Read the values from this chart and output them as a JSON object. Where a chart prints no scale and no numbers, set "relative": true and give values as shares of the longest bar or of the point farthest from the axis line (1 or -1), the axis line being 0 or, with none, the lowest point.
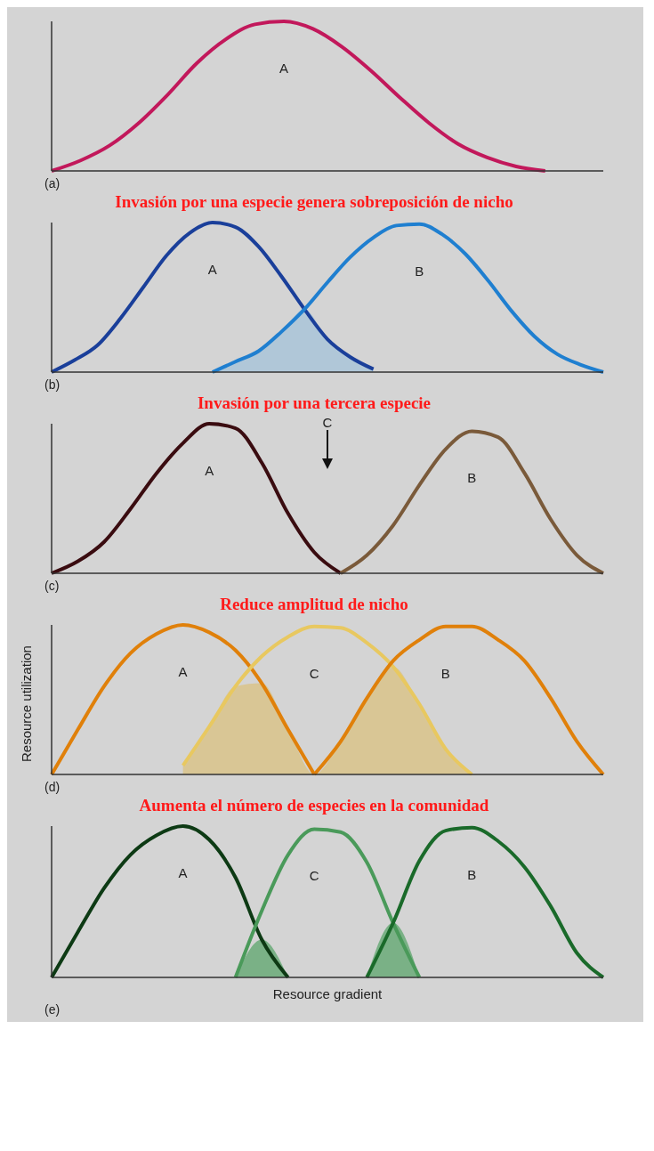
{
  "chart_data": [
    {
      "type": "line",
      "relative": true,
      "annotations": [
        "(a)"
      ],
      "categories": [
        null,
        null,
        null,
        null,
        null,
        null,
        null,
        null,
        null,
        null,
        null,
        null,
        null,
        null,
        null,
        null,
        null,
        null,
        null,
        null
      ],
      "series": [
        {
          "name": "A",
          "color": "#c2185b",
          "values": [
            0,
            0.07,
            0.17,
            0.32,
            0.51,
            0.72,
            0.88,
            0.98,
            1.0,
            0.95,
            0.83,
            0.67,
            0.49,
            0.32,
            0.18,
            0.09,
            0.03,
            0,
            null,
            null
          ]
        }
      ]
    },
    {
      "type": "line",
      "relative": true,
      "title": "Invasión por una especie genera sobreposición de nicho",
      "annotations": [
        "(b)"
      ],
      "categories": [
        null,
        null,
        null,
        null,
        null,
        null,
        null,
        null,
        null,
        null,
        null,
        null,
        null,
        null,
        null,
        null,
        null,
        null,
        null,
        null,
        null,
        null,
        null,
        null,
        null
      ],
      "series": [
        {
          "type": "area",
          "color": "#a9c4d8",
          "values": [
            null,
            null,
            null,
            null,
            null,
            null,
            null,
            0,
            0.07,
            0.14,
            0.27,
            0.42,
            0.22,
            0.1,
            0.02,
            null,
            null,
            null,
            null,
            null,
            null,
            null,
            null,
            null,
            null
          ]
        },
        {
          "name": "A",
          "color": "#1a3f9a",
          "values": [
            0,
            0.08,
            0.18,
            0.36,
            0.57,
            0.78,
            0.93,
            1.0,
            0.97,
            0.84,
            0.64,
            0.42,
            0.22,
            0.1,
            0.02,
            null,
            null,
            null,
            null,
            null,
            null,
            null,
            null,
            null,
            null
          ]
        },
        {
          "name": "B",
          "color": "#1f7fd0",
          "values": [
            null,
            null,
            null,
            null,
            null,
            null,
            null,
            0,
            0.07,
            0.14,
            0.27,
            0.42,
            0.6,
            0.77,
            0.9,
            0.98,
            0.99,
            0.92,
            0.79,
            0.61,
            0.41,
            0.24,
            0.12,
            0.05,
            0
          ]
        }
      ]
    },
    {
      "type": "line",
      "relative": true,
      "title": "Invasión por una tercera especie",
      "annotations": [
        "(c)",
        "C"
      ],
      "categories": [
        null,
        null,
        null,
        null,
        null,
        null,
        null,
        null,
        null,
        null,
        null,
        null,
        null,
        null,
        null,
        null,
        null,
        null,
        null,
        null,
        null,
        null
      ],
      "series": [
        {
          "name": "A",
          "color": "#3a0c10",
          "values": [
            0,
            0.08,
            0.21,
            0.43,
            0.67,
            0.87,
            1.0,
            0.97,
            0.74,
            0.4,
            0.14,
            0,
            null,
            null,
            null,
            null,
            null,
            null,
            null,
            null,
            null,
            null
          ]
        },
        {
          "name": "B",
          "color": "#7a5a3a",
          "values": [
            null,
            null,
            null,
            null,
            null,
            null,
            null,
            null,
            null,
            null,
            null,
            0,
            0.12,
            0.32,
            0.59,
            0.83,
            0.95,
            0.91,
            0.67,
            0.36,
            0.12,
            0
          ]
        }
      ]
    },
    {
      "type": "line",
      "relative": true,
      "title": "Reduce amplitud de nicho",
      "ylabel": "Resource utilization",
      "annotations": [
        "(d)"
      ],
      "categories": [
        null,
        null,
        null,
        null,
        null,
        null,
        null,
        null,
        null,
        null,
        null,
        null,
        null,
        null,
        null,
        null,
        null,
        null,
        null,
        null,
        null,
        null
      ],
      "series": [
        {
          "type": "area",
          "color": "#d9c38a",
          "values": [
            null,
            null,
            null,
            null,
            null,
            0.06,
            0.32,
            0.59,
            0.61,
            0.3,
            0,
            0.22,
            0.51,
            0.72,
            0.47,
            0.17,
            0,
            null,
            null,
            null,
            null,
            null
          ]
        },
        {
          "name": "A",
          "color": "#e0800a",
          "values": [
            0,
            0.3,
            0.59,
            0.81,
            0.94,
            1.0,
            0.95,
            0.83,
            0.61,
            0.3,
            0,
            null,
            null,
            null,
            null,
            null,
            null,
            null,
            null,
            null,
            null,
            null
          ]
        },
        {
          "name": "C",
          "color": "#e8c860",
          "values": [
            null,
            null,
            null,
            null,
            null,
            0.06,
            0.32,
            0.59,
            0.79,
            0.92,
            0.99,
            0.98,
            0.88,
            0.72,
            0.47,
            0.17,
            0,
            null,
            null,
            null,
            null,
            null
          ]
        },
        {
          "name": "B",
          "color": "#e0800a",
          "values": [
            null,
            null,
            null,
            null,
            null,
            null,
            null,
            null,
            null,
            null,
            0,
            0.22,
            0.51,
            0.76,
            0.9,
            0.99,
            0.99,
            0.9,
            0.76,
            0.51,
            0.22,
            0
          ]
        }
      ]
    },
    {
      "type": "line",
      "relative": true,
      "title": "Aumenta el número de especies en la comunidad",
      "xlabel": "Resource gradient",
      "annotations": [
        "(e)"
      ],
      "categories": [
        null,
        null,
        null,
        null,
        null,
        null,
        null,
        null,
        null,
        null,
        null,
        null,
        null,
        null,
        null,
        null,
        null,
        null,
        null,
        null,
        null,
        null
      ],
      "series": [
        {
          "type": "area",
          "color": "#6aaa78",
          "values": [
            null,
            null,
            null,
            null,
            null,
            null,
            null,
            0,
            0.25,
            0,
            null,
            null,
            0,
            0.36,
            0,
            null,
            null,
            null,
            null,
            null,
            null,
            null
          ]
        },
        {
          "name": "A",
          "color": "#0d3a14",
          "values": [
            0,
            0.3,
            0.59,
            0.81,
            0.94,
            1.0,
            0.91,
            0.66,
            0.25,
            0,
            null,
            null,
            null,
            null,
            null,
            null,
            null,
            null,
            null,
            null,
            null,
            null
          ]
        },
        {
          "name": "C",
          "color": "#4a9a5a",
          "values": [
            null,
            null,
            null,
            null,
            null,
            null,
            null,
            0,
            0.44,
            0.81,
            0.98,
            0.96,
            0.76,
            0.36,
            0,
            null,
            null,
            null,
            null,
            null,
            null,
            null
          ]
        },
        {
          "name": "B",
          "color": "#1a6a2a",
          "values": [
            null,
            null,
            null,
            null,
            null,
            null,
            null,
            null,
            null,
            null,
            null,
            null,
            0,
            0.36,
            0.77,
            0.97,
            0.99,
            0.9,
            0.73,
            0.47,
            0.16,
            0
          ]
        }
      ]
    }
  ]
}
